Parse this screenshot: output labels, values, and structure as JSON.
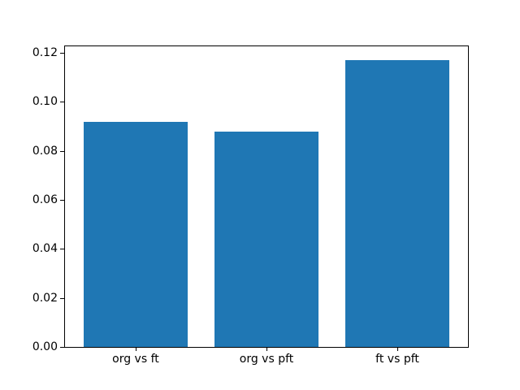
{
  "figure": {
    "background": "#ffffff",
    "axes_background": "#ffffff",
    "spine_color": "#000000",
    "tick_color": "#000000",
    "text_color": "#000000"
  },
  "chart_data": {
    "type": "bar",
    "title": "",
    "xlabel": "",
    "ylabel": "",
    "categories": [
      "org vs ft",
      "org vs pft",
      "ft vs pft"
    ],
    "values": [
      0.092,
      0.088,
      0.117
    ],
    "bar_color": "#1f77b4",
    "bar_width_fraction": 0.8,
    "xlim": [
      -0.54,
      2.54
    ],
    "ylim": [
      0,
      0.1227
    ],
    "yticks": [
      0.0,
      0.02,
      0.04,
      0.06,
      0.08,
      0.1,
      0.12
    ],
    "ytick_labels": [
      "0.00",
      "0.02",
      "0.04",
      "0.06",
      "0.08",
      "0.10",
      "0.12"
    ],
    "grid": false,
    "legend": null
  }
}
